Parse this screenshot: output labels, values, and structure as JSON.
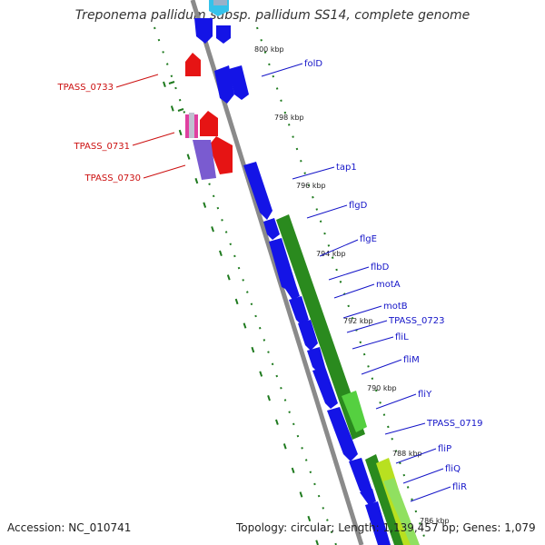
{
  "title": "Treponema pallidum subsp. pallidum SS14, complete genome",
  "footer": {
    "accession": "Accession: NC_010741",
    "topology": "Topology: circular; Length: 1,139,457 bp; Genes: 1,079"
  },
  "colors": {
    "forward_gene": "#1414e6",
    "reverse_gene": "#e61414",
    "operon": "#2a8a1e",
    "ruler": "#1e7a1e",
    "backbone": "#808080",
    "label_blue": "#1414c8",
    "label_red": "#cc1010"
  },
  "ticks": [
    "800 kbp",
    "798 kbp",
    "796 kbp",
    "794 kbp",
    "792 kbp",
    "790 kbp",
    "788 kbp",
    "786 kbp"
  ],
  "genes_right": [
    "folD",
    "tap1",
    "flgD",
    "flgE",
    "flbD",
    "motA",
    "motB",
    "TPASS_0723",
    "fliL",
    "fliM",
    "fliY",
    "TPASS_0719",
    "fliP",
    "fliQ",
    "fliR"
  ],
  "genes_left": [
    "TPASS_0733",
    "TPASS_0731",
    "TPASS_0730"
  ]
}
